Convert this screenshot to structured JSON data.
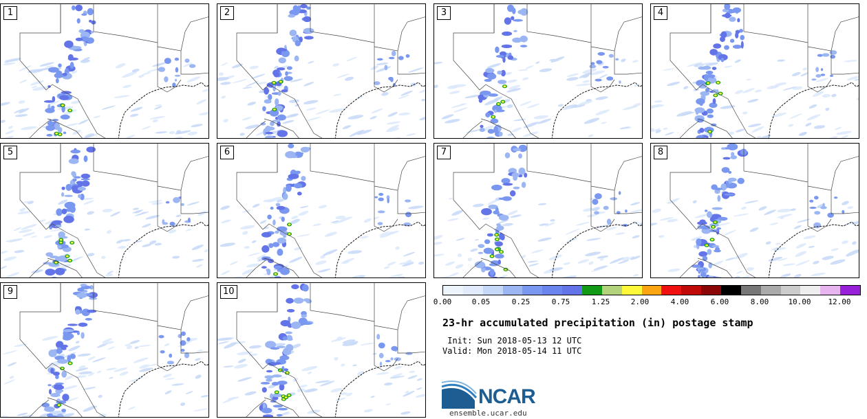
{
  "panels": [
    {
      "label": "1"
    },
    {
      "label": "2"
    },
    {
      "label": "3"
    },
    {
      "label": "4"
    },
    {
      "label": "5"
    },
    {
      "label": "6"
    },
    {
      "label": "7"
    },
    {
      "label": "8"
    },
    {
      "label": "9"
    },
    {
      "label": "10"
    }
  ],
  "colorbar": {
    "colors": [
      "#eef4fc",
      "#e1ebfb",
      "#c6d8f7",
      "#9bb6f3",
      "#7a98f0",
      "#6a86ee",
      "#6374e8",
      "#129a17",
      "#b3d27c",
      "#fdf93a",
      "#fca512",
      "#f01010",
      "#c00a0a",
      "#8b0606",
      "#000000",
      "#777777",
      "#aaaaaa",
      "#cccccc",
      "#eeeeee",
      "#e8b4f0",
      "#9920d9"
    ],
    "tick_labels": [
      "0.00",
      "0.05",
      "0.25",
      "0.75",
      "1.25",
      "2.00",
      "4.00",
      "6.00",
      "8.00",
      "10.00",
      "12.00"
    ]
  },
  "title": "23-hr accumulated precipitation (in) postage stamp",
  "init_line": " Init: Sun 2018-05-13 12 UTC",
  "valid_line": "Valid: Mon 2018-05-14 11 UTC",
  "logo": {
    "text": "NCAR",
    "url": "ensemble.ucar.edu",
    "color": "#1d5d92"
  }
}
